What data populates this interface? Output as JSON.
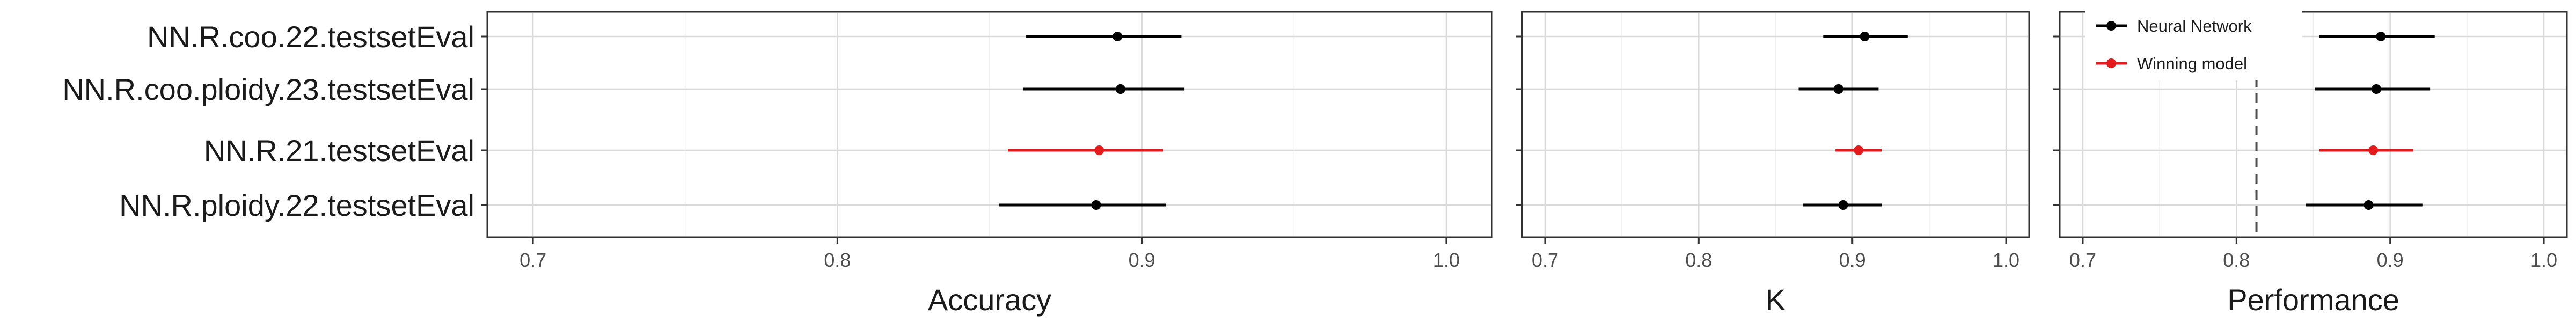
{
  "chart_data": {
    "type": "forest",
    "categories": [
      "NN.R.coo.22.testsetEval",
      "NN.R.coo.ploidy.23.testsetEval",
      "NN.R.21.testsetEval",
      "NN.R.ploidy.22.testsetEval"
    ],
    "colors": {
      "Neural Network": "#000000",
      "Winning model": "#e41a1c"
    },
    "legend": {
      "position": "top-left of Performance panel",
      "entries": [
        "Neural Network",
        "Winning model"
      ]
    },
    "panels": [
      {
        "name": "accuracy",
        "xlabel": "Accuracy",
        "xlim": [
          0.685,
          1.015
        ],
        "xticks": [
          0.7,
          0.8,
          0.9,
          1.0
        ],
        "xtick_labels": [
          "0.7",
          "0.8",
          "0.9",
          "1.0"
        ],
        "points": [
          {
            "category": "NN.R.coo.22.testsetEval",
            "group": "Neural Network",
            "estimate": 0.892,
            "lower": 0.862,
            "upper": 0.913
          },
          {
            "category": "NN.R.coo.ploidy.23.testsetEval",
            "group": "Neural Network",
            "estimate": 0.893,
            "lower": 0.861,
            "upper": 0.914
          },
          {
            "category": "NN.R.21.testsetEval",
            "group": "Winning model",
            "estimate": 0.886,
            "lower": 0.856,
            "upper": 0.907
          },
          {
            "category": "NN.R.ploidy.22.testsetEval",
            "group": "Neural Network",
            "estimate": 0.885,
            "lower": 0.853,
            "upper": 0.908
          }
        ]
      },
      {
        "name": "kappa",
        "xlabel": "K",
        "xlim": [
          0.685,
          1.015
        ],
        "xticks": [
          0.7,
          0.8,
          0.9,
          1.0
        ],
        "xtick_labels": [
          "0.7",
          "0.8",
          "0.9",
          "1.0"
        ],
        "points": [
          {
            "category": "NN.R.coo.22.testsetEval",
            "group": "Neural Network",
            "estimate": 0.908,
            "lower": 0.881,
            "upper": 0.936
          },
          {
            "category": "NN.R.coo.ploidy.23.testsetEval",
            "group": "Neural Network",
            "estimate": 0.891,
            "lower": 0.865,
            "upper": 0.917
          },
          {
            "category": "NN.R.21.testsetEval",
            "group": "Winning model",
            "estimate": 0.904,
            "lower": 0.889,
            "upper": 0.919
          },
          {
            "category": "NN.R.ploidy.22.testsetEval",
            "group": "Neural Network",
            "estimate": 0.894,
            "lower": 0.868,
            "upper": 0.919
          }
        ]
      },
      {
        "name": "performance",
        "xlabel": "Performance",
        "xlim": [
          0.685,
          1.015
        ],
        "xticks": [
          0.7,
          0.8,
          0.9,
          1.0
        ],
        "xtick_labels": [
          "0.7",
          "0.8",
          "0.9",
          "1.0"
        ],
        "reference_line": 0.813,
        "points": [
          {
            "category": "NN.R.coo.22.testsetEval",
            "group": "Neural Network",
            "estimate": 0.894,
            "lower": 0.854,
            "upper": 0.929
          },
          {
            "category": "NN.R.coo.ploidy.23.testsetEval",
            "group": "Neural Network",
            "estimate": 0.891,
            "lower": 0.851,
            "upper": 0.926
          },
          {
            "category": "NN.R.21.testsetEval",
            "group": "Winning model",
            "estimate": 0.889,
            "lower": 0.854,
            "upper": 0.915
          },
          {
            "category": "NN.R.ploidy.22.testsetEval",
            "group": "Neural Network",
            "estimate": 0.886,
            "lower": 0.845,
            "upper": 0.921
          }
        ]
      }
    ]
  }
}
